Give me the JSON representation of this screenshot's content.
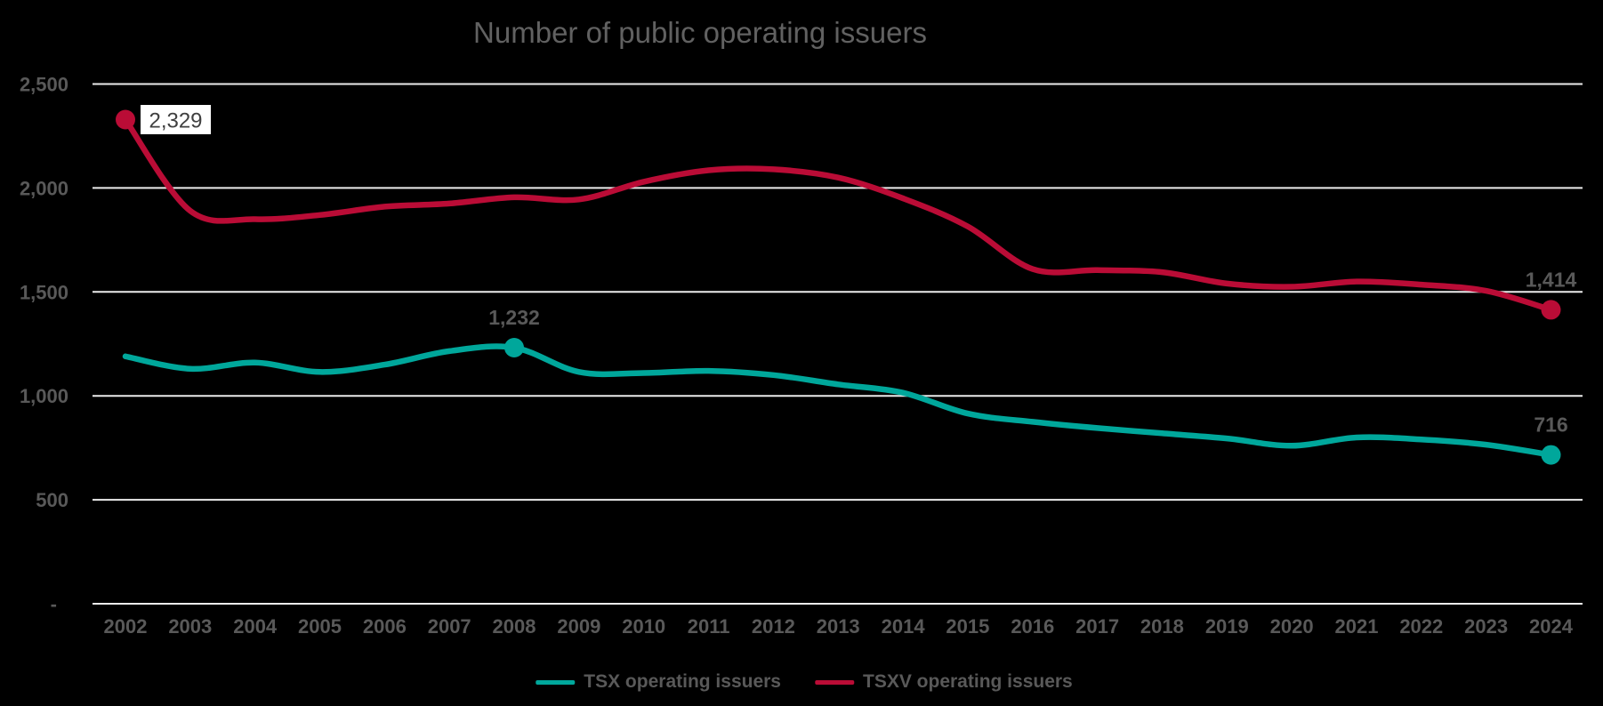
{
  "title": "Number of public operating issuers",
  "colors": {
    "background": "#000000",
    "tsx_teal": "#00A79B",
    "tsxv_red": "#BA0C36",
    "gridline": "#ECECEC",
    "axis_text": "#595959",
    "title_text": "#616161",
    "callout_bg": "#FFFFFF",
    "callout_text": "#404040"
  },
  "chart_data": {
    "type": "line",
    "smoothed": true,
    "title": "Number of public operating issuers",
    "xlabel": "",
    "ylabel": "",
    "ylim": [
      0,
      2500
    ],
    "grid": true,
    "legend_position": "bottom",
    "x": [
      "2002",
      "2003",
      "2004",
      "2005",
      "2006",
      "2007",
      "2008",
      "2009",
      "2010",
      "2011",
      "2012",
      "2013",
      "2014",
      "2015",
      "2016",
      "2017",
      "2018",
      "2019",
      "2020",
      "2021",
      "2022",
      "2023",
      "2024"
    ],
    "yticks": [
      {
        "value": 2500,
        "label": "2,500"
      },
      {
        "value": 2000,
        "label": "2,000"
      },
      {
        "value": 1500,
        "label": "1,500"
      },
      {
        "value": 1000,
        "label": "1,000"
      },
      {
        "value": 500,
        "label": "500"
      },
      {
        "value": 0,
        "label": "-"
      }
    ],
    "series": [
      {
        "id": "tsx",
        "name": "TSX operating issuers",
        "color": "#00A79B",
        "values": [
          1190,
          1130,
          1160,
          1115,
          1150,
          1215,
          1232,
          1115,
          1110,
          1120,
          1100,
          1055,
          1015,
          915,
          875,
          845,
          820,
          795,
          760,
          800,
          790,
          765,
          716
        ],
        "point_labels": [
          {
            "year": "2008",
            "label": "1,232",
            "style": "plain"
          },
          {
            "year": "2024",
            "label": "716",
            "style": "plain"
          }
        ]
      },
      {
        "id": "tsxv",
        "name": "TSXV operating issuers",
        "color": "#BA0C36",
        "values": [
          2329,
          1890,
          1850,
          1870,
          1910,
          1925,
          1955,
          1945,
          2030,
          2085,
          2090,
          2050,
          1950,
          1815,
          1610,
          1605,
          1595,
          1540,
          1525,
          1550,
          1535,
          1505,
          1414
        ],
        "point_labels": [
          {
            "year": "2002",
            "label": "2,329",
            "style": "boxed"
          },
          {
            "year": "2024",
            "label": "1,414",
            "style": "plain"
          }
        ]
      }
    ]
  },
  "legend": {
    "items": [
      {
        "label": "TSX operating issuers"
      },
      {
        "label": "TSXV operating issuers"
      }
    ]
  }
}
